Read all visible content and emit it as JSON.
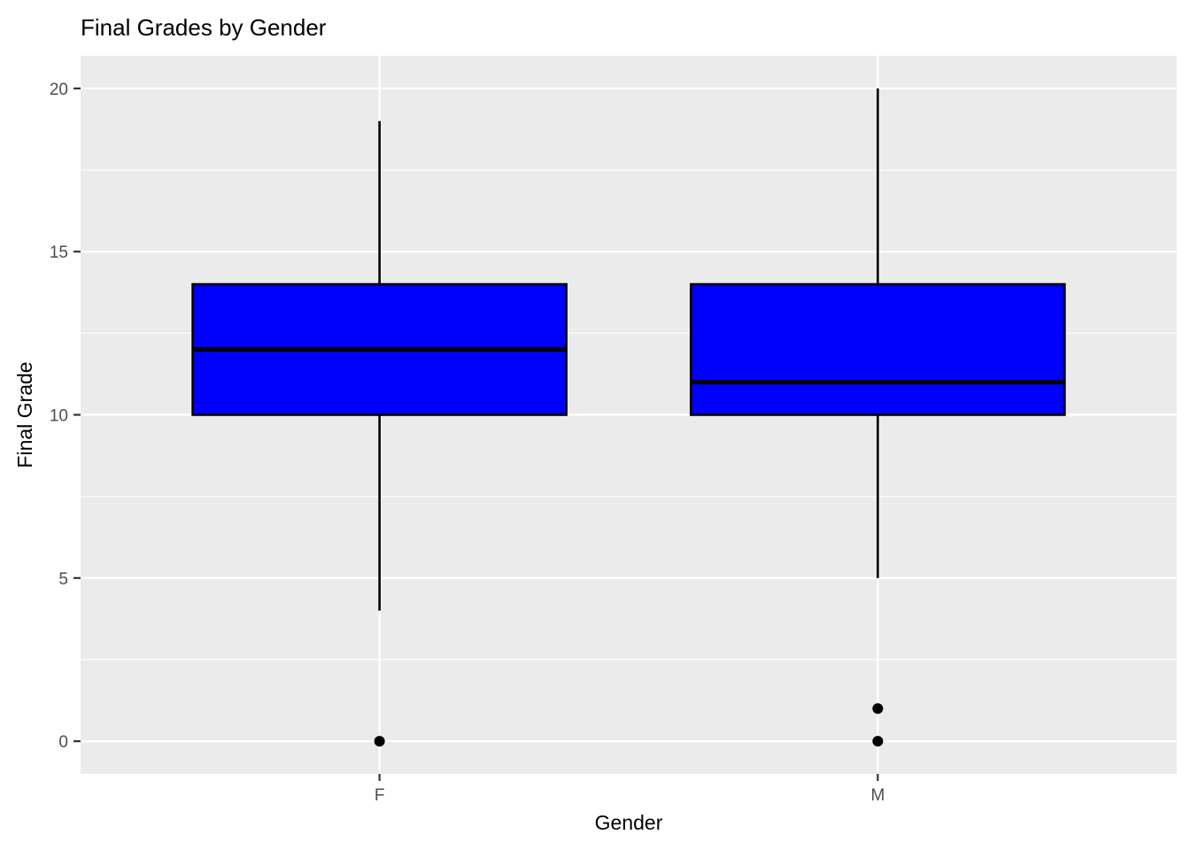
{
  "chart_data": {
    "type": "boxplot",
    "title": "Final Grades by Gender",
    "xlabel": "Gender",
    "ylabel": "Final Grade",
    "categories": [
      "F",
      "M"
    ],
    "ylim": [
      -1,
      21
    ],
    "yticks": [
      0,
      5,
      10,
      15,
      20
    ],
    "grid": true,
    "series": [
      {
        "name": "F",
        "whisker_low": 4,
        "q1": 10,
        "median": 12,
        "q3": 14,
        "whisker_high": 19,
        "outliers": [
          0
        ]
      },
      {
        "name": "M",
        "whisker_low": 5,
        "q1": 10,
        "median": 11,
        "q3": 14,
        "whisker_high": 20,
        "outliers": [
          0,
          1
        ]
      }
    ],
    "colors": {
      "box_fill": "#0000ff",
      "box_outline": "#000000",
      "panel_background": "#ebebeb",
      "grid_line": "#ffffff",
      "tick_text": "#4d4d4d",
      "title_text": "#000000"
    }
  }
}
